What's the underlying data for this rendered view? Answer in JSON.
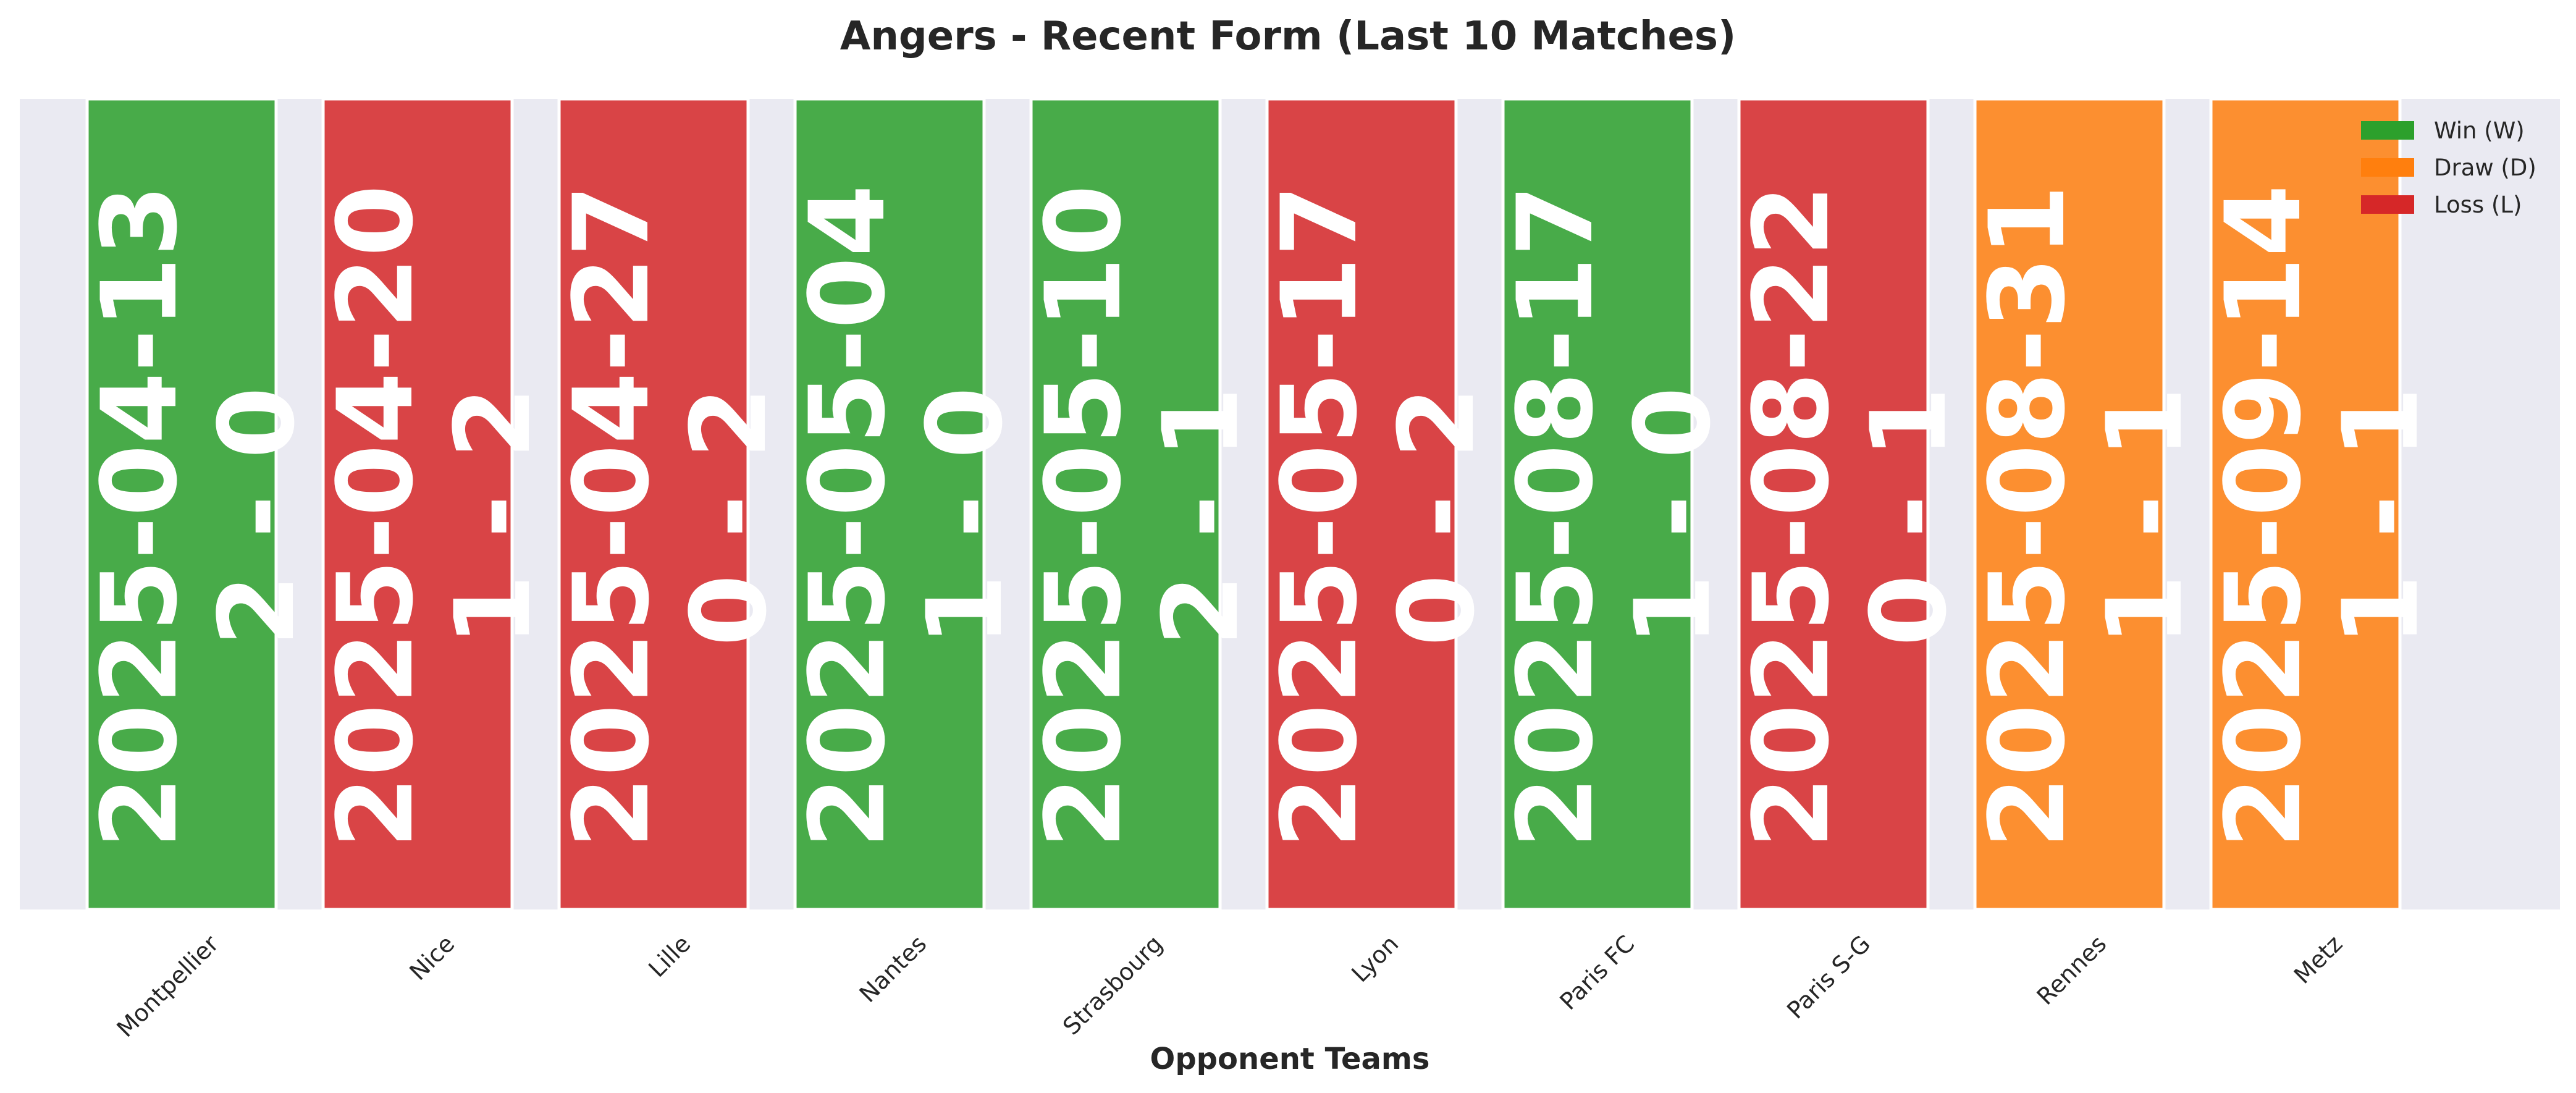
{
  "chart_data": {
    "type": "bar",
    "title": "Angers - Recent Form (Last 10 Matches)",
    "xlabel": "Opponent Teams",
    "ylabel": "",
    "ylim": [
      0,
      1
    ],
    "grid": true,
    "legend_position": "top-right",
    "categories": [
      "Montpellier",
      "Nice",
      "Lille",
      "Nantes",
      "Strasbourg",
      "Lyon",
      "Paris FC",
      "Paris S-G",
      "Rennes",
      "Metz"
    ],
    "values": [
      1,
      1,
      1,
      1,
      1,
      1,
      1,
      1,
      1,
      1
    ],
    "results": [
      "W",
      "L",
      "L",
      "W",
      "W",
      "L",
      "W",
      "L",
      "D",
      "D"
    ],
    "dates": [
      "2025-04-13",
      "2025-04-20",
      "2025-04-27",
      "2025-05-04",
      "2025-05-10",
      "2025-05-17",
      "2025-08-17",
      "2025-08-22",
      "2025-08-31",
      "2025-09-14"
    ],
    "scores": [
      "2 - 0",
      "1 - 2",
      "0 - 2",
      "1 - 0",
      "2 - 1",
      "0 - 2",
      "1 - 0",
      "0 - 1",
      "1 - 1",
      "1 - 1"
    ],
    "legend": [
      {
        "key": "W",
        "label": "Win (W)"
      },
      {
        "key": "D",
        "label": "Draw (D)"
      },
      {
        "key": "L",
        "label": "Loss (L)"
      }
    ],
    "colors": {
      "W": "#2ca02c",
      "D": "#ff7f0e",
      "L": "#d62728",
      "plot_background": "#eaeaf2",
      "bar_edge": "#ffffff"
    }
  }
}
